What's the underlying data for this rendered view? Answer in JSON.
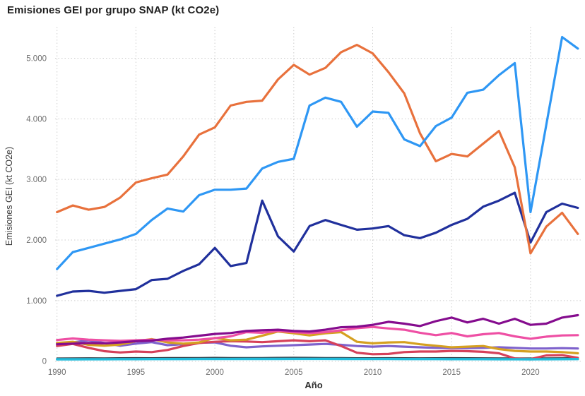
{
  "title": "Emisiones GEI por grupo SNAP (kt CO2e)",
  "x_axis": {
    "label": "Año",
    "ticks": [
      1990,
      1995,
      2000,
      2005,
      2010,
      2015,
      2020
    ]
  },
  "y_axis": {
    "label": "Emisiones GEI (kt CO2e)",
    "ticks": [
      "0",
      "1.000",
      "2.000",
      "3.000",
      "4.000",
      "5.000"
    ],
    "tick_values": [
      0,
      1000,
      2000,
      3000,
      4000,
      5000
    ]
  },
  "colors": {
    "grid": "#cccccc",
    "tick_text": "#6e6e6e",
    "title_text": "#1f1f1f"
  },
  "chart_data": {
    "type": "line",
    "title": "Emisiones GEI por grupo SNAP (kt CO2e)",
    "xlabel": "Año",
    "ylabel": "Emisiones GEI (kt CO2e)",
    "xlim": [
      1990,
      2023
    ],
    "ylim": [
      0,
      5500
    ],
    "grid": true,
    "legend": false,
    "x": [
      1990,
      1991,
      1992,
      1993,
      1994,
      1995,
      1996,
      1997,
      1998,
      1999,
      2000,
      2001,
      2002,
      2003,
      2004,
      2005,
      2006,
      2007,
      2008,
      2009,
      2010,
      2011,
      2012,
      2013,
      2014,
      2015,
      2016,
      2017,
      2018,
      2019,
      2020,
      2021,
      2022,
      2023
    ],
    "series": [
      {
        "name": "serie-gris-oscura-cerca-de-cero",
        "color": "#37424a",
        "width": 2,
        "values": [
          50,
          52,
          54,
          53,
          55,
          56,
          55,
          57,
          58,
          58,
          60,
          58,
          57,
          58,
          60,
          62,
          60,
          58,
          57,
          55,
          55,
          56,
          55,
          54,
          55,
          56,
          55,
          54,
          53,
          52,
          50,
          52,
          54,
          55
        ]
      },
      {
        "name": "serie-violeta",
        "color": "#7e62cc",
        "width": 3.2,
        "values": [
          290,
          310,
          345,
          300,
          255,
          290,
          315,
          265,
          280,
          305,
          310,
          255,
          230,
          245,
          255,
          265,
          275,
          285,
          270,
          250,
          240,
          250,
          240,
          230,
          220,
          215,
          215,
          220,
          230,
          220,
          210,
          210,
          215,
          210
        ]
      },
      {
        "name": "serie-roja",
        "color": "#d6415a",
        "width": 3.2,
        "values": [
          250,
          285,
          220,
          165,
          145,
          160,
          150,
          185,
          250,
          300,
          320,
          330,
          325,
          315,
          330,
          345,
          330,
          345,
          250,
          140,
          115,
          120,
          150,
          160,
          160,
          170,
          165,
          155,
          130,
          45,
          35,
          95,
          100,
          55
        ]
      },
      {
        "name": "serie-amarilla",
        "color": "#d5a021",
        "width": 3.2,
        "values": [
          300,
          320,
          270,
          255,
          275,
          330,
          365,
          310,
          290,
          310,
          385,
          345,
          355,
          420,
          490,
          460,
          425,
          460,
          480,
          320,
          295,
          310,
          315,
          280,
          255,
          230,
          240,
          250,
          200,
          170,
          160,
          160,
          150,
          130
        ]
      },
      {
        "name": "serie-rosa",
        "color": "#ee4fa4",
        "width": 3.2,
        "values": [
          350,
          375,
          355,
          345,
          335,
          345,
          355,
          345,
          345,
          355,
          380,
          410,
          480,
          470,
          500,
          480,
          465,
          480,
          510,
          545,
          565,
          540,
          520,
          470,
          430,
          465,
          410,
          445,
          465,
          410,
          370,
          405,
          425,
          430
        ]
      },
      {
        "name": "serie-morada-oscura",
        "color": "#850c8e",
        "width": 3.2,
        "values": [
          280,
          290,
          300,
          295,
          310,
          330,
          340,
          370,
          390,
          420,
          450,
          465,
          500,
          510,
          520,
          500,
          490,
          520,
          560,
          570,
          600,
          650,
          620,
          580,
          660,
          720,
          640,
          700,
          620,
          700,
          600,
          620,
          720,
          760
        ]
      },
      {
        "name": "serie-azul-marino",
        "color": "#20309c",
        "width": 3.2,
        "values": [
          1080,
          1150,
          1160,
          1130,
          1160,
          1190,
          1340,
          1360,
          1490,
          1600,
          1870,
          1570,
          1620,
          2650,
          2060,
          1810,
          2230,
          2330,
          2250,
          2170,
          2190,
          2230,
          2080,
          2030,
          2120,
          2250,
          2350,
          2550,
          2650,
          2780,
          1960,
          2460,
          2600,
          2530
        ]
      },
      {
        "name": "serie-naranja",
        "color": "#e8713c",
        "width": 3.2,
        "values": [
          2460,
          2570,
          2500,
          2545,
          2700,
          2950,
          3020,
          3080,
          3380,
          3740,
          3860,
          4220,
          4280,
          4300,
          4650,
          4890,
          4730,
          4840,
          5100,
          5220,
          5080,
          4770,
          4420,
          3760,
          3300,
          3420,
          3380,
          3590,
          3800,
          3200,
          1780,
          2220,
          2450,
          2100
        ]
      },
      {
        "name": "serie-azul-claro",
        "color": "#2e97f4",
        "width": 3.2,
        "values": [
          1520,
          1800,
          1870,
          1940,
          2010,
          2100,
          2330,
          2520,
          2470,
          2740,
          2830,
          2830,
          2850,
          3180,
          3290,
          3340,
          4220,
          4350,
          4280,
          3870,
          4120,
          4100,
          3660,
          3550,
          3880,
          4020,
          4430,
          4480,
          4720,
          4920,
          2460,
          3900,
          5350,
          5160
        ]
      },
      {
        "name": "serie-cian",
        "color": "#22bcdb",
        "width": 3.4,
        "values": [
          32,
          32,
          33,
          33,
          34,
          34,
          35,
          35,
          35,
          36,
          36,
          36,
          37,
          37,
          37,
          38,
          38,
          38,
          37,
          36,
          36,
          36,
          35,
          35,
          35,
          34,
          34,
          34,
          33,
          33,
          32,
          33,
          34,
          35
        ]
      }
    ]
  }
}
